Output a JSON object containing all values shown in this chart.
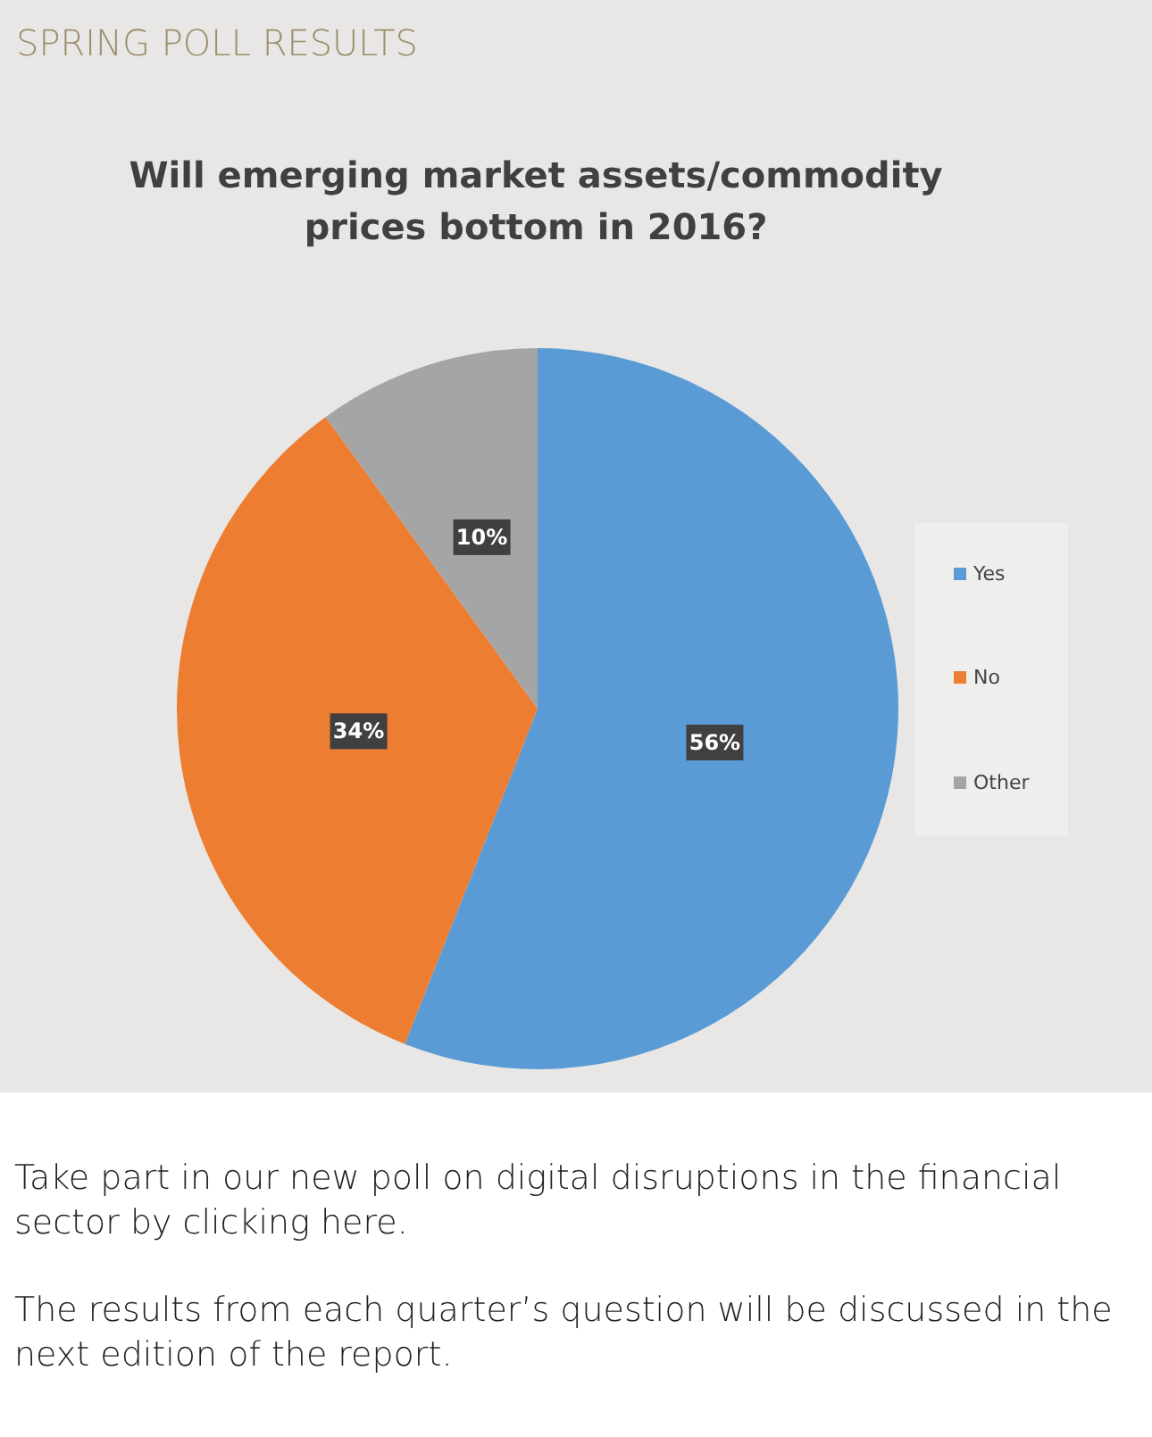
{
  "chart_data": {
    "type": "pie",
    "subtitle": "SPRING POLL RESULTS",
    "title": "Will emerging market assets/commodity prices bottom in 2016?",
    "categories": [
      "Yes",
      "No",
      "Other"
    ],
    "values": [
      56,
      34,
      10
    ],
    "colors": [
      "#5b9bd5",
      "#ed7d31",
      "#a5a5a5"
    ],
    "value_labels": [
      "56%",
      "34%",
      "10%"
    ],
    "legend": "right",
    "annotations": [
      "Take part in our new poll on digital disruptions in the financial sector by clicking here.",
      "The results from each quarter’s question will be discussed in the next edition of the report."
    ]
  }
}
